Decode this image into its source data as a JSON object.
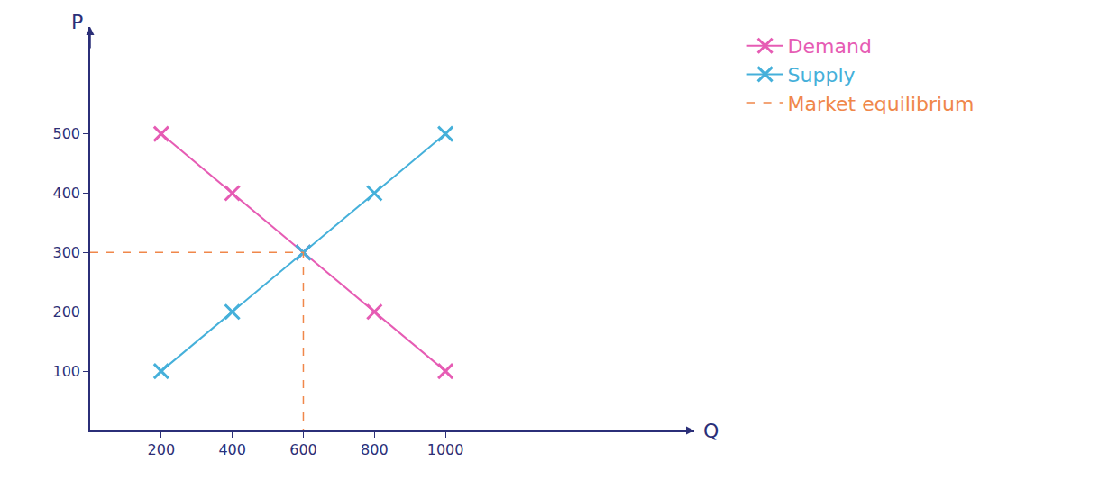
{
  "chart_data": {
    "type": "line",
    "x_label": "Q",
    "y_label": "P",
    "xlim": [
      0,
      1700
    ],
    "xticks": [
      200,
      400,
      600,
      800,
      1000
    ],
    "ylim": [
      0,
      680
    ],
    "yticks": [
      100,
      200,
      300,
      400,
      500
    ],
    "grid": false,
    "legend": "right",
    "series": [
      {
        "name": "Demand",
        "color": "#e65cb4",
        "marker": "x",
        "line_style": "solid",
        "x": [
          200,
          400,
          600,
          800,
          1000
        ],
        "values": [
          500,
          400,
          300,
          200,
          100
        ]
      },
      {
        "name": "Supply",
        "color": "#45b0da",
        "marker": "x",
        "line_style": "solid",
        "x": [
          200,
          400,
          600,
          800,
          1000
        ],
        "values": [
          100,
          200,
          300,
          400,
          500
        ]
      },
      {
        "name": "Market equilibrium",
        "color": "#f0874a",
        "marker": "none",
        "line_style": "dashed",
        "x": [
          600
        ],
        "values": [
          300
        ]
      }
    ]
  }
}
